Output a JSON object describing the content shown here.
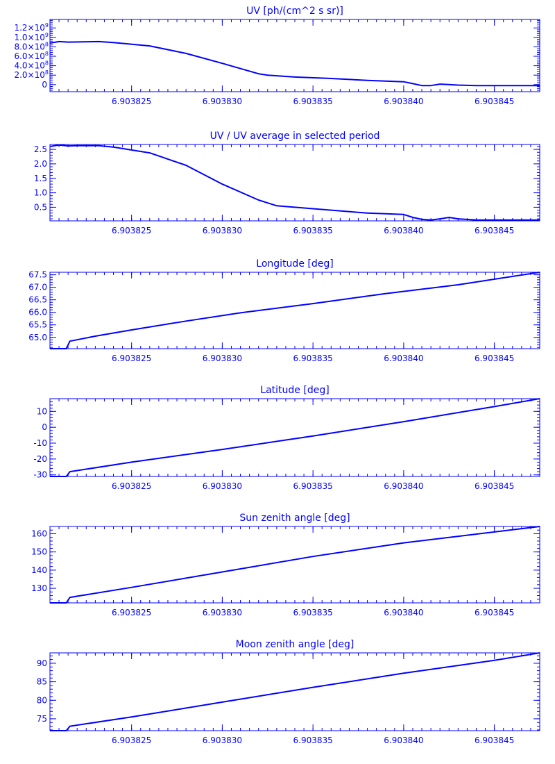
{
  "chart_data": [
    {
      "type": "line",
      "title": "UV [ph/(cm^2 s sr)]",
      "xlim": [
        6.9038205,
        6.9038475
      ],
      "ylim": [
        -150000000.0,
        1380000000.0
      ],
      "x_ticks": [
        "6.903825",
        "6.903830",
        "6.903835",
        "6.903840",
        "6.903845"
      ],
      "y_ticks": [
        {
          "value": 0,
          "base": "0",
          "exp": ""
        },
        {
          "value": 200000000.0,
          "base": "2.0×10",
          "exp": "8"
        },
        {
          "value": 400000000.0,
          "base": "4.0×10",
          "exp": "8"
        },
        {
          "value": 600000000.0,
          "base": "6.0×10",
          "exp": "8"
        },
        {
          "value": 800000000.0,
          "base": "8.0×10",
          "exp": "8"
        },
        {
          "value": 1000000000.0,
          "base": "1.0×10",
          "exp": "9"
        },
        {
          "value": 1200000000.0,
          "base": "1.2×10",
          "exp": "9"
        }
      ],
      "x": [
        6.9038205,
        6.903821,
        6.9038215,
        6.9038232,
        6.903824,
        6.903826,
        6.903828,
        6.90383,
        6.903832,
        6.9038325,
        6.903834,
        6.903836,
        6.903838,
        6.90384,
        6.9038405,
        6.903841,
        6.9038415,
        6.903842,
        6.903843,
        6.903844,
        6.903846,
        6.9038475
      ],
      "y": [
        880000000.0,
        910000000.0,
        900000000.0,
        910000000.0,
        890000000.0,
        820000000.0,
        660000000.0,
        450000000.0,
        230000000.0,
        200000000.0,
        160000000.0,
        130000000.0,
        90000000.0,
        60000000.0,
        20000000.0,
        -20000000.0,
        -20000000.0,
        10000000.0,
        -10000000.0,
        -20000000.0,
        -20000000.0,
        -20000000.0
      ]
    },
    {
      "type": "line",
      "title": "UV / UV average in selected period",
      "xlim": [
        6.9038205,
        6.9038475
      ],
      "ylim": [
        0.03,
        2.67
      ],
      "x_ticks": [
        "6.903825",
        "6.903830",
        "6.903835",
        "6.903840",
        "6.903845"
      ],
      "y_ticks": [
        {
          "value": 0.5,
          "base": "0.5",
          "exp": ""
        },
        {
          "value": 1.0,
          "base": "1.0",
          "exp": ""
        },
        {
          "value": 1.5,
          "base": "1.5",
          "exp": ""
        },
        {
          "value": 2.0,
          "base": "2.0",
          "exp": ""
        },
        {
          "value": 2.5,
          "base": "2.5",
          "exp": ""
        }
      ],
      "x": [
        6.9038205,
        6.903821,
        6.9038215,
        6.903822,
        6.9038232,
        6.903824,
        6.903826,
        6.903828,
        6.90383,
        6.903832,
        6.903833,
        6.903835,
        6.903838,
        6.90384,
        6.9038405,
        6.903841,
        6.9038415,
        6.903842,
        6.9038425,
        6.903843,
        6.903844,
        6.903846,
        6.9038475
      ],
      "y": [
        2.6,
        2.65,
        2.62,
        2.63,
        2.63,
        2.58,
        2.38,
        1.95,
        1.3,
        0.75,
        0.55,
        0.45,
        0.3,
        0.25,
        0.15,
        0.08,
        0.06,
        0.1,
        0.15,
        0.1,
        0.06,
        0.06,
        0.06
      ]
    },
    {
      "type": "line",
      "title": "Longitude [deg]",
      "xlim": [
        6.9038205,
        6.9038475
      ],
      "ylim": [
        64.55,
        67.6
      ],
      "x_ticks": [
        "6.903825",
        "6.903830",
        "6.903835",
        "6.903840",
        "6.903845"
      ],
      "y_ticks": [
        {
          "value": 65.0,
          "base": "65.0",
          "exp": ""
        },
        {
          "value": 65.5,
          "base": "65.5",
          "exp": ""
        },
        {
          "value": 66.0,
          "base": "66.0",
          "exp": ""
        },
        {
          "value": 66.5,
          "base": "66.5",
          "exp": ""
        },
        {
          "value": 67.0,
          "base": "67.0",
          "exp": ""
        },
        {
          "value": 67.5,
          "base": "67.5",
          "exp": ""
        }
      ],
      "x": [
        6.9038205,
        6.9038214,
        6.9038216,
        6.903823,
        6.903825,
        6.903828,
        6.903831,
        6.903835,
        6.903839,
        6.903843,
        6.9038475
      ],
      "y": [
        64.55,
        64.55,
        64.85,
        65.05,
        65.3,
        65.65,
        65.98,
        66.35,
        66.75,
        67.1,
        67.6
      ]
    },
    {
      "type": "line",
      "title": "Latitude [deg]",
      "xlim": [
        6.9038205,
        6.9038475
      ],
      "ylim": [
        -31.0,
        18.0
      ],
      "x_ticks": [
        "6.903825",
        "6.903830",
        "6.903835",
        "6.903840",
        "6.903845"
      ],
      "y_ticks": [
        {
          "value": -30,
          "base": "-30",
          "exp": ""
        },
        {
          "value": -20,
          "base": "-20",
          "exp": ""
        },
        {
          "value": -10,
          "base": "-10",
          "exp": ""
        },
        {
          "value": 0,
          "base": "0",
          "exp": ""
        },
        {
          "value": 10,
          "base": "10",
          "exp": ""
        }
      ],
      "x": [
        6.9038205,
        6.9038214,
        6.9038216,
        6.903825,
        6.90383,
        6.903835,
        6.90384,
        6.903845,
        6.9038475
      ],
      "y": [
        -31.0,
        -31.0,
        -28.0,
        -22.0,
        -14.0,
        -5.5,
        3.5,
        13.0,
        18.0
      ]
    },
    {
      "type": "line",
      "title": "Sun zenith angle [deg]",
      "xlim": [
        6.9038205,
        6.9038475
      ],
      "ylim": [
        122.0,
        164.0
      ],
      "x_ticks": [
        "6.903825",
        "6.903830",
        "6.903835",
        "6.903840",
        "6.903845"
      ],
      "y_ticks": [
        {
          "value": 130,
          "base": "130",
          "exp": ""
        },
        {
          "value": 140,
          "base": "140",
          "exp": ""
        },
        {
          "value": 150,
          "base": "150",
          "exp": ""
        },
        {
          "value": 160,
          "base": "160",
          "exp": ""
        }
      ],
      "x": [
        6.9038205,
        6.9038214,
        6.9038216,
        6.903825,
        6.90383,
        6.903835,
        6.90384,
        6.903845,
        6.9038475
      ],
      "y": [
        122.0,
        122.0,
        125.0,
        130.5,
        139.0,
        147.5,
        155.0,
        161.0,
        164.0
      ]
    },
    {
      "type": "line",
      "title": "Moon zenith angle [deg]",
      "xlim": [
        6.9038205,
        6.9038475
      ],
      "ylim": [
        71.8,
        92.8
      ],
      "x_ticks": [
        "6.903825",
        "6.903830",
        "6.903835",
        "6.903840",
        "6.903845"
      ],
      "y_ticks": [
        {
          "value": 75,
          "base": "75",
          "exp": ""
        },
        {
          "value": 80,
          "base": "80",
          "exp": ""
        },
        {
          "value": 85,
          "base": "85",
          "exp": ""
        },
        {
          "value": 90,
          "base": "90",
          "exp": ""
        }
      ],
      "x": [
        6.9038205,
        6.9038214,
        6.9038216,
        6.903825,
        6.90383,
        6.903835,
        6.90384,
        6.903845,
        6.9038475
      ],
      "y": [
        71.8,
        71.8,
        73.0,
        75.5,
        79.5,
        83.5,
        87.3,
        90.8,
        92.8
      ]
    }
  ],
  "style": {
    "color": "#0000ff"
  }
}
